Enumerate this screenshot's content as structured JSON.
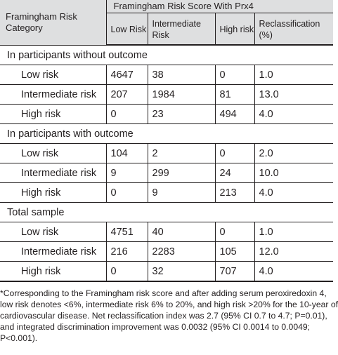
{
  "header": {
    "category": "Framingham Risk Category",
    "group": "Framingham Risk Score With Prx4",
    "cols": [
      "Low Risk",
      "Intermediate Risk",
      "High risk",
      "Reclassification (%)"
    ]
  },
  "sections": [
    {
      "title": "In participants without outcome",
      "rows": [
        {
          "label": "Low risk",
          "low": "4647",
          "intermediate": "38",
          "high": "0",
          "reclass": "1.0"
        },
        {
          "label": "Intermediate risk",
          "low": "207",
          "intermediate": "1984",
          "high": "81",
          "reclass": "13.0"
        },
        {
          "label": "High risk",
          "low": "0",
          "intermediate": "23",
          "high": "494",
          "reclass": "4.0"
        }
      ]
    },
    {
      "title": "In participants with outcome",
      "rows": [
        {
          "label": "Low risk",
          "low": "104",
          "intermediate": "2",
          "high": "0",
          "reclass": "2.0"
        },
        {
          "label": "Intermediate risk",
          "low": "9",
          "intermediate": "299",
          "high": "24",
          "reclass": "10.0"
        },
        {
          "label": "High risk",
          "low": "0",
          "intermediate": "9",
          "high": "213",
          "reclass": "4.0"
        }
      ]
    },
    {
      "title": "Total sample",
      "rows": [
        {
          "label": "Low risk",
          "low": "4751",
          "intermediate": "40",
          "high": "0",
          "reclass": "1.0"
        },
        {
          "label": "Intermediate risk",
          "low": "216",
          "intermediate": "2283",
          "high": "105",
          "reclass": "12.0"
        },
        {
          "label": "High risk",
          "low": "0",
          "intermediate": "32",
          "high": "707",
          "reclass": "4.0"
        }
      ]
    }
  ],
  "footnote": {
    "lines": [
      "*Corresponding to the Framingham risk score and after adding serum peroxiredoxin 4,",
      "low risk denotes <6%, intermediate risk 6% to 20%, and high risk >20% for the 10-year of",
      "cardiovascular disease. Net reclassification index was 2.7 (95% CI 0.7 to 4.7; P=0.01),",
      "and integrated discrimination improvement was 0.0032 (95% CI 0.0014 to 0.0049;",
      "P<0.001)."
    ]
  }
}
